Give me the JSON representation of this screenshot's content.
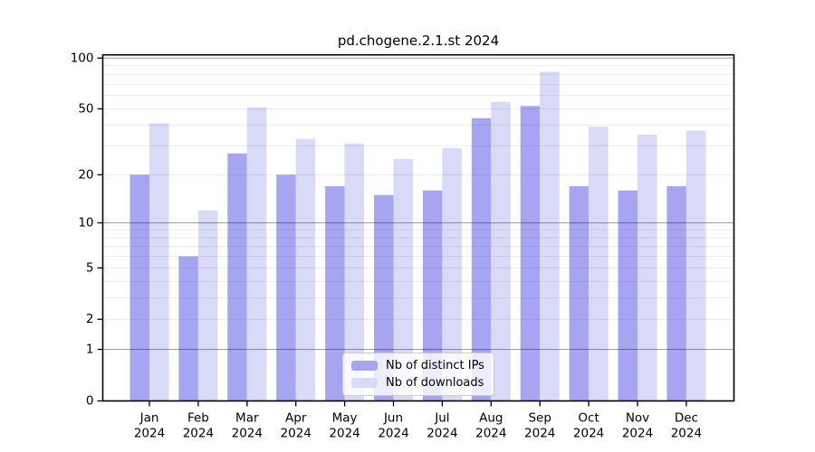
{
  "chart_data": {
    "type": "bar",
    "title": "pd.chogene.2.1.st 2024",
    "months": [
      "Jan",
      "Feb",
      "Mar",
      "Apr",
      "May",
      "Jun",
      "Jul",
      "Aug",
      "Sep",
      "Oct",
      "Nov",
      "Dec"
    ],
    "year": "2024",
    "categories": [
      "Jan 2024",
      "Feb 2024",
      "Mar 2024",
      "Apr 2024",
      "May 2024",
      "Jun 2024",
      "Jul 2024",
      "Aug 2024",
      "Sep 2024",
      "Oct 2024",
      "Nov 2024",
      "Dec 2024"
    ],
    "y_ticks": [
      100,
      50,
      20,
      10,
      5,
      2,
      1,
      0
    ],
    "y_scale": "log10(1+x)",
    "ylim": [
      0,
      100
    ],
    "grid": "horizontal major at 1,10,100 and faint minor lines",
    "legend_position": "lower center",
    "series": [
      {
        "name": "Nb of distinct IPs",
        "color": "#a5a5f2",
        "values": [
          20,
          6,
          27,
          20,
          17,
          15,
          16,
          44,
          52,
          17,
          16,
          17
        ]
      },
      {
        "name": "Nb of downloads",
        "color": "#d9d9f8",
        "values": [
          41,
          12,
          51,
          33,
          31,
          25,
          29,
          55,
          83,
          39,
          35,
          37
        ]
      }
    ],
    "colors": {
      "axis": "#000000",
      "major_grid": "rgba(0,0,0,0.38)",
      "minor_grid": "rgba(0,0,0,0.08)",
      "background": "#ffffff"
    }
  }
}
